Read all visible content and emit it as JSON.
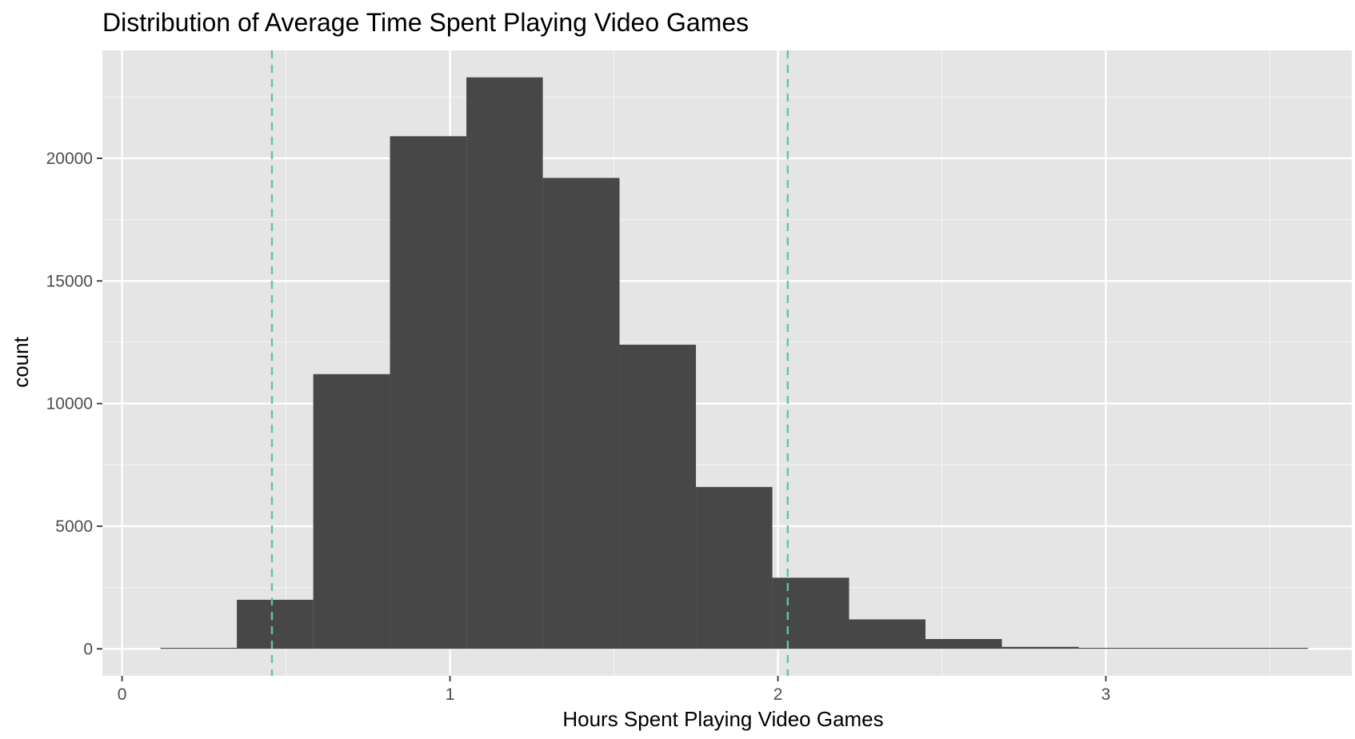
{
  "colors": {
    "panel_background": "#E5E5E5",
    "grid_major": "#FFFFFF",
    "grid_minor": "#F2F2F2",
    "bar_fill": "#474747",
    "reference_line": "#5BC8A0",
    "tick_label": "#4D4D4D",
    "axis_title": "#000000"
  },
  "chart_data": {
    "type": "bar",
    "subtype": "histogram",
    "title": "Distribution of Average Time Spent Playing Video Games",
    "xlabel": "Hours Spent Playing Video Games",
    "ylabel": "count",
    "xlim": [
      -0.06,
      3.75
    ],
    "ylim": [
      -1100,
      24400
    ],
    "x_ticks": [
      0,
      1,
      2,
      3
    ],
    "y_ticks": [
      0,
      5000,
      10000,
      15000,
      20000
    ],
    "x_tick_labels": [
      "0",
      "1",
      "2",
      "3"
    ],
    "y_tick_labels": [
      "0",
      "5000",
      "10000",
      "15000",
      "20000"
    ],
    "grid": true,
    "legend": "none",
    "bins": [
      {
        "x0": 0.117,
        "x1": 0.35,
        "count": 20
      },
      {
        "x0": 0.35,
        "x1": 0.583,
        "count": 2000
      },
      {
        "x0": 0.583,
        "x1": 0.817,
        "count": 11200
      },
      {
        "x0": 0.817,
        "x1": 1.05,
        "count": 20900
      },
      {
        "x0": 1.05,
        "x1": 1.283,
        "count": 23300
      },
      {
        "x0": 1.283,
        "x1": 1.517,
        "count": 19200
      },
      {
        "x0": 1.517,
        "x1": 1.75,
        "count": 12400
      },
      {
        "x0": 1.75,
        "x1": 1.983,
        "count": 6600
      },
      {
        "x0": 1.983,
        "x1": 2.217,
        "count": 2900
      },
      {
        "x0": 2.217,
        "x1": 2.45,
        "count": 1200
      },
      {
        "x0": 2.45,
        "x1": 2.683,
        "count": 400
      },
      {
        "x0": 2.683,
        "x1": 2.917,
        "count": 80
      },
      {
        "x0": 2.917,
        "x1": 3.15,
        "count": 20
      },
      {
        "x0": 3.15,
        "x1": 3.383,
        "count": 10
      },
      {
        "x0": 3.383,
        "x1": 3.617,
        "count": 0
      }
    ],
    "reference_lines": [
      {
        "x": 0.457,
        "style": "dashed"
      },
      {
        "x": 2.03,
        "style": "dashed"
      }
    ]
  }
}
